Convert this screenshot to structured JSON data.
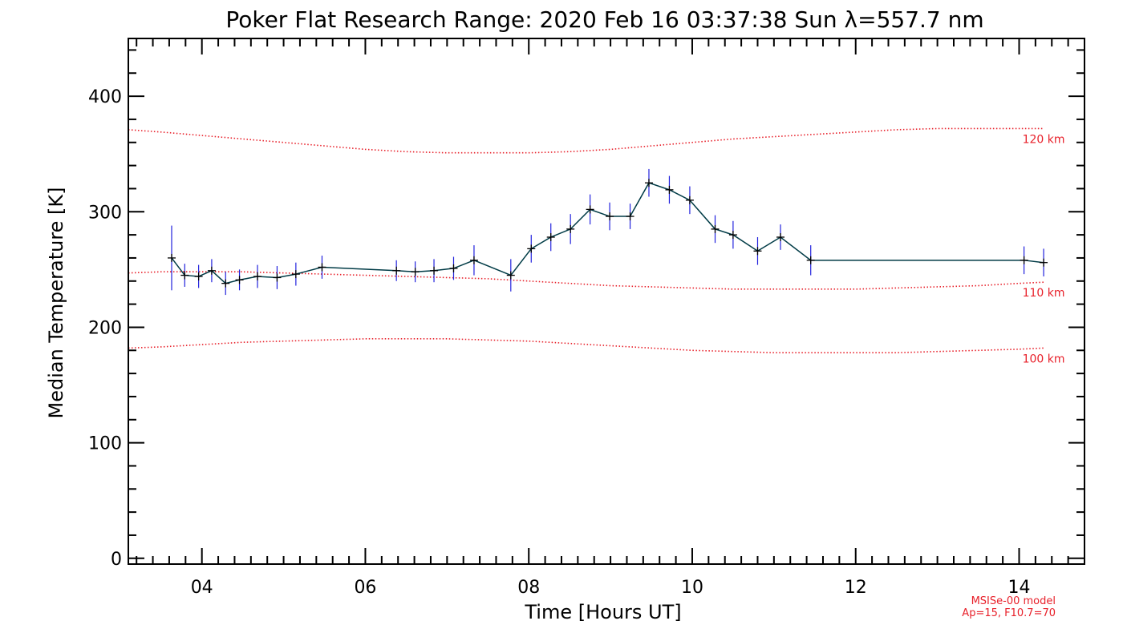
{
  "chart_data": {
    "type": "line",
    "title": "Poker Flat Research Range: 2020 Feb 16 03:37:38 Sun λ=557.7 nm",
    "xlabel": "Time [Hours UT]",
    "ylabel": "Median Temperature [K]",
    "xlim": [
      3.1,
      14.8
    ],
    "ylim": [
      -5,
      450
    ],
    "x_ticks": [
      4,
      6,
      8,
      10,
      12,
      14
    ],
    "x_tick_labels": [
      "04",
      "06",
      "08",
      "10",
      "12",
      "14"
    ],
    "y_ticks": [
      0,
      100,
      200,
      300,
      400
    ],
    "y_tick_labels": [
      "0",
      "100",
      "200",
      "300",
      "400"
    ],
    "grid": false,
    "series": [
      {
        "color": "#003b46",
        "errorbar_color": "#2222dd",
        "marker": "plus",
        "x": [
          3.63,
          3.79,
          3.96,
          4.12,
          4.29,
          4.46,
          4.68,
          4.92,
          5.15,
          5.47,
          6.38,
          6.61,
          6.84,
          7.08,
          7.33,
          7.78,
          8.03,
          8.27,
          8.51,
          8.75,
          8.99,
          9.24,
          9.47,
          9.72,
          9.97,
          10.28,
          10.5,
          10.8,
          11.08,
          11.45,
          14.06,
          14.3
        ],
        "y": [
          260,
          245,
          244,
          249,
          238,
          241,
          244,
          243,
          246,
          252,
          249,
          248,
          249,
          251,
          258,
          245,
          268,
          278,
          285,
          302,
          296,
          296,
          325,
          319,
          310,
          285,
          280,
          266,
          278,
          258,
          258,
          256
        ],
        "err": [
          28,
          10,
          10,
          10,
          10,
          9,
          10,
          10,
          10,
          10,
          9,
          9,
          10,
          10,
          13,
          14,
          12,
          12,
          13,
          13,
          12,
          11,
          12,
          12,
          12,
          12,
          12,
          12,
          11,
          13,
          12,
          12
        ]
      }
    ],
    "model_curves": [
      {
        "label": "120 km",
        "color": "#e8202a",
        "x": [
          3.1,
          3.5,
          4.0,
          4.5,
          5.0,
          5.5,
          6.0,
          6.5,
          7.0,
          7.5,
          8.0,
          8.5,
          9.0,
          9.5,
          10.0,
          10.5,
          11.0,
          11.5,
          12.0,
          12.5,
          13.0,
          13.5,
          14.0,
          14.3
        ],
        "y": [
          371,
          369,
          366,
          363,
          360,
          357,
          354,
          352,
          351,
          351,
          351,
          352,
          354,
          357,
          360,
          363,
          365,
          367,
          369,
          371,
          372,
          372,
          372,
          372
        ]
      },
      {
        "label": "110 km",
        "color": "#e8202a",
        "x": [
          3.1,
          3.5,
          4.0,
          4.5,
          5.0,
          5.5,
          6.0,
          6.5,
          7.0,
          7.5,
          8.0,
          8.5,
          9.0,
          9.5,
          10.0,
          10.5,
          11.0,
          11.5,
          12.0,
          12.5,
          13.0,
          13.5,
          14.0,
          14.3
        ],
        "y": [
          247,
          248,
          248,
          248,
          247,
          246,
          245,
          244,
          243,
          242,
          240,
          238,
          236,
          235,
          234,
          233,
          233,
          233,
          233,
          234,
          235,
          236,
          238,
          239
        ]
      },
      {
        "label": "100 km",
        "color": "#e8202a",
        "x": [
          3.1,
          3.5,
          4.0,
          4.5,
          5.0,
          5.5,
          6.0,
          6.5,
          7.0,
          7.5,
          8.0,
          8.5,
          9.0,
          9.5,
          10.0,
          10.5,
          11.0,
          11.5,
          12.0,
          12.5,
          13.0,
          13.5,
          14.0,
          14.3
        ],
        "y": [
          182,
          183,
          185,
          187,
          188,
          189,
          190,
          190,
          190,
          189,
          188,
          186,
          184,
          182,
          180,
          179,
          178,
          178,
          178,
          178,
          179,
          180,
          181,
          182
        ]
      }
    ],
    "annotation_lines": [
      "MSISe-00 model",
      "Ap=15, F10.7=70"
    ]
  }
}
